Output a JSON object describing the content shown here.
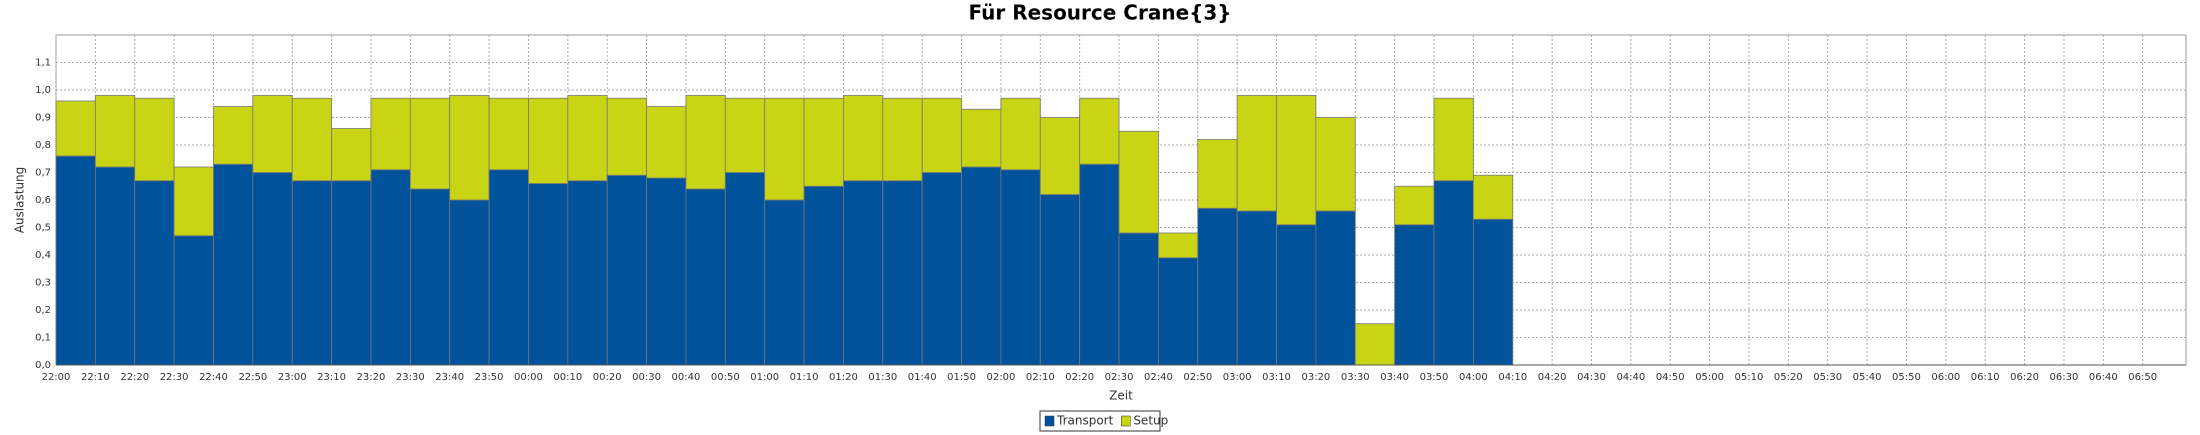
{
  "chart_data": {
    "type": "bar",
    "stacked": true,
    "title": "Für Resource Crane{3}",
    "x_label": "Zeit",
    "y_label": "Auslastung",
    "categories": [
      "22:00",
      "22:10",
      "22:20",
      "22:30",
      "22:40",
      "22:50",
      "23:00",
      "23:10",
      "23:20",
      "23:30",
      "23:40",
      "23:50",
      "00:00",
      "00:10",
      "00:20",
      "00:30",
      "00:40",
      "00:50",
      "01:00",
      "01:10",
      "01:20",
      "01:30",
      "01:40",
      "01:50",
      "02:00",
      "02:10",
      "02:20",
      "02:30",
      "02:40",
      "02:50",
      "03:00",
      "03:10",
      "03:20",
      "03:30",
      "03:40",
      "03:50",
      "04:00",
      "04:10",
      "04:20",
      "04:30",
      "04:40",
      "04:50",
      "05:00",
      "05:10",
      "05:20",
      "05:30",
      "05:40",
      "05:50",
      "06:00",
      "06:10",
      "06:20",
      "06:30",
      "06:40",
      "06:50"
    ],
    "series": [
      {
        "name": "Transport",
        "color": "#00529b",
        "values": [
          0.76,
          0.72,
          0.67,
          0.47,
          0.73,
          0.7,
          0.67,
          0.67,
          0.71,
          0.64,
          0.6,
          0.71,
          0.66,
          0.67,
          0.69,
          0.68,
          0.64,
          0.7,
          0.6,
          0.65,
          0.67,
          0.67,
          0.7,
          0.72,
          0.71,
          0.62,
          0.73,
          0.48,
          0.39,
          0.57,
          0.56,
          0.51,
          0.56,
          0,
          0.51,
          0.67,
          0.53,
          null,
          null,
          null,
          null,
          null,
          null,
          null,
          null,
          null,
          null,
          null,
          null,
          null,
          null,
          null,
          null,
          null
        ]
      },
      {
        "name": "Setup",
        "color": "#c8d414",
        "values": [
          0.2,
          0.26,
          0.3,
          0.25,
          0.21,
          0.28,
          0.3,
          0.19,
          0.26,
          0.33,
          0.38,
          0.26,
          0.31,
          0.31,
          0.28,
          0.26,
          0.34,
          0.27,
          0.37,
          0.32,
          0.31,
          0.3,
          0.27,
          0.21,
          0.26,
          0.28,
          0.24,
          0.37,
          0.09,
          0.25,
          0.42,
          0.47,
          0.34,
          0.15,
          0.14,
          0.3,
          0.16,
          null,
          null,
          null,
          null,
          null,
          null,
          null,
          null,
          null,
          null,
          null,
          null,
          null,
          null,
          null,
          null,
          null
        ]
      }
    ],
    "ylim": [
      0,
      1.2
    ],
    "yticks": [
      {
        "value": 0,
        "label": "0,0"
      },
      {
        "value": 0.1,
        "label": "0,1"
      },
      {
        "value": 0.2,
        "label": "0,2"
      },
      {
        "value": 0.3,
        "label": "0,3"
      },
      {
        "value": 0.4,
        "label": "0,4"
      },
      {
        "value": 0.5,
        "label": "0,5"
      },
      {
        "value": 0.6,
        "label": "0,6"
      },
      {
        "value": 0.7,
        "label": "0,7"
      },
      {
        "value": 0.8,
        "label": "0,8"
      },
      {
        "value": 0.9,
        "label": "0,9"
      },
      {
        "value": 1.0,
        "label": "1,0"
      },
      {
        "value": 1.1,
        "label": "1,1"
      }
    ],
    "grid": true,
    "legend": "bottom"
  }
}
